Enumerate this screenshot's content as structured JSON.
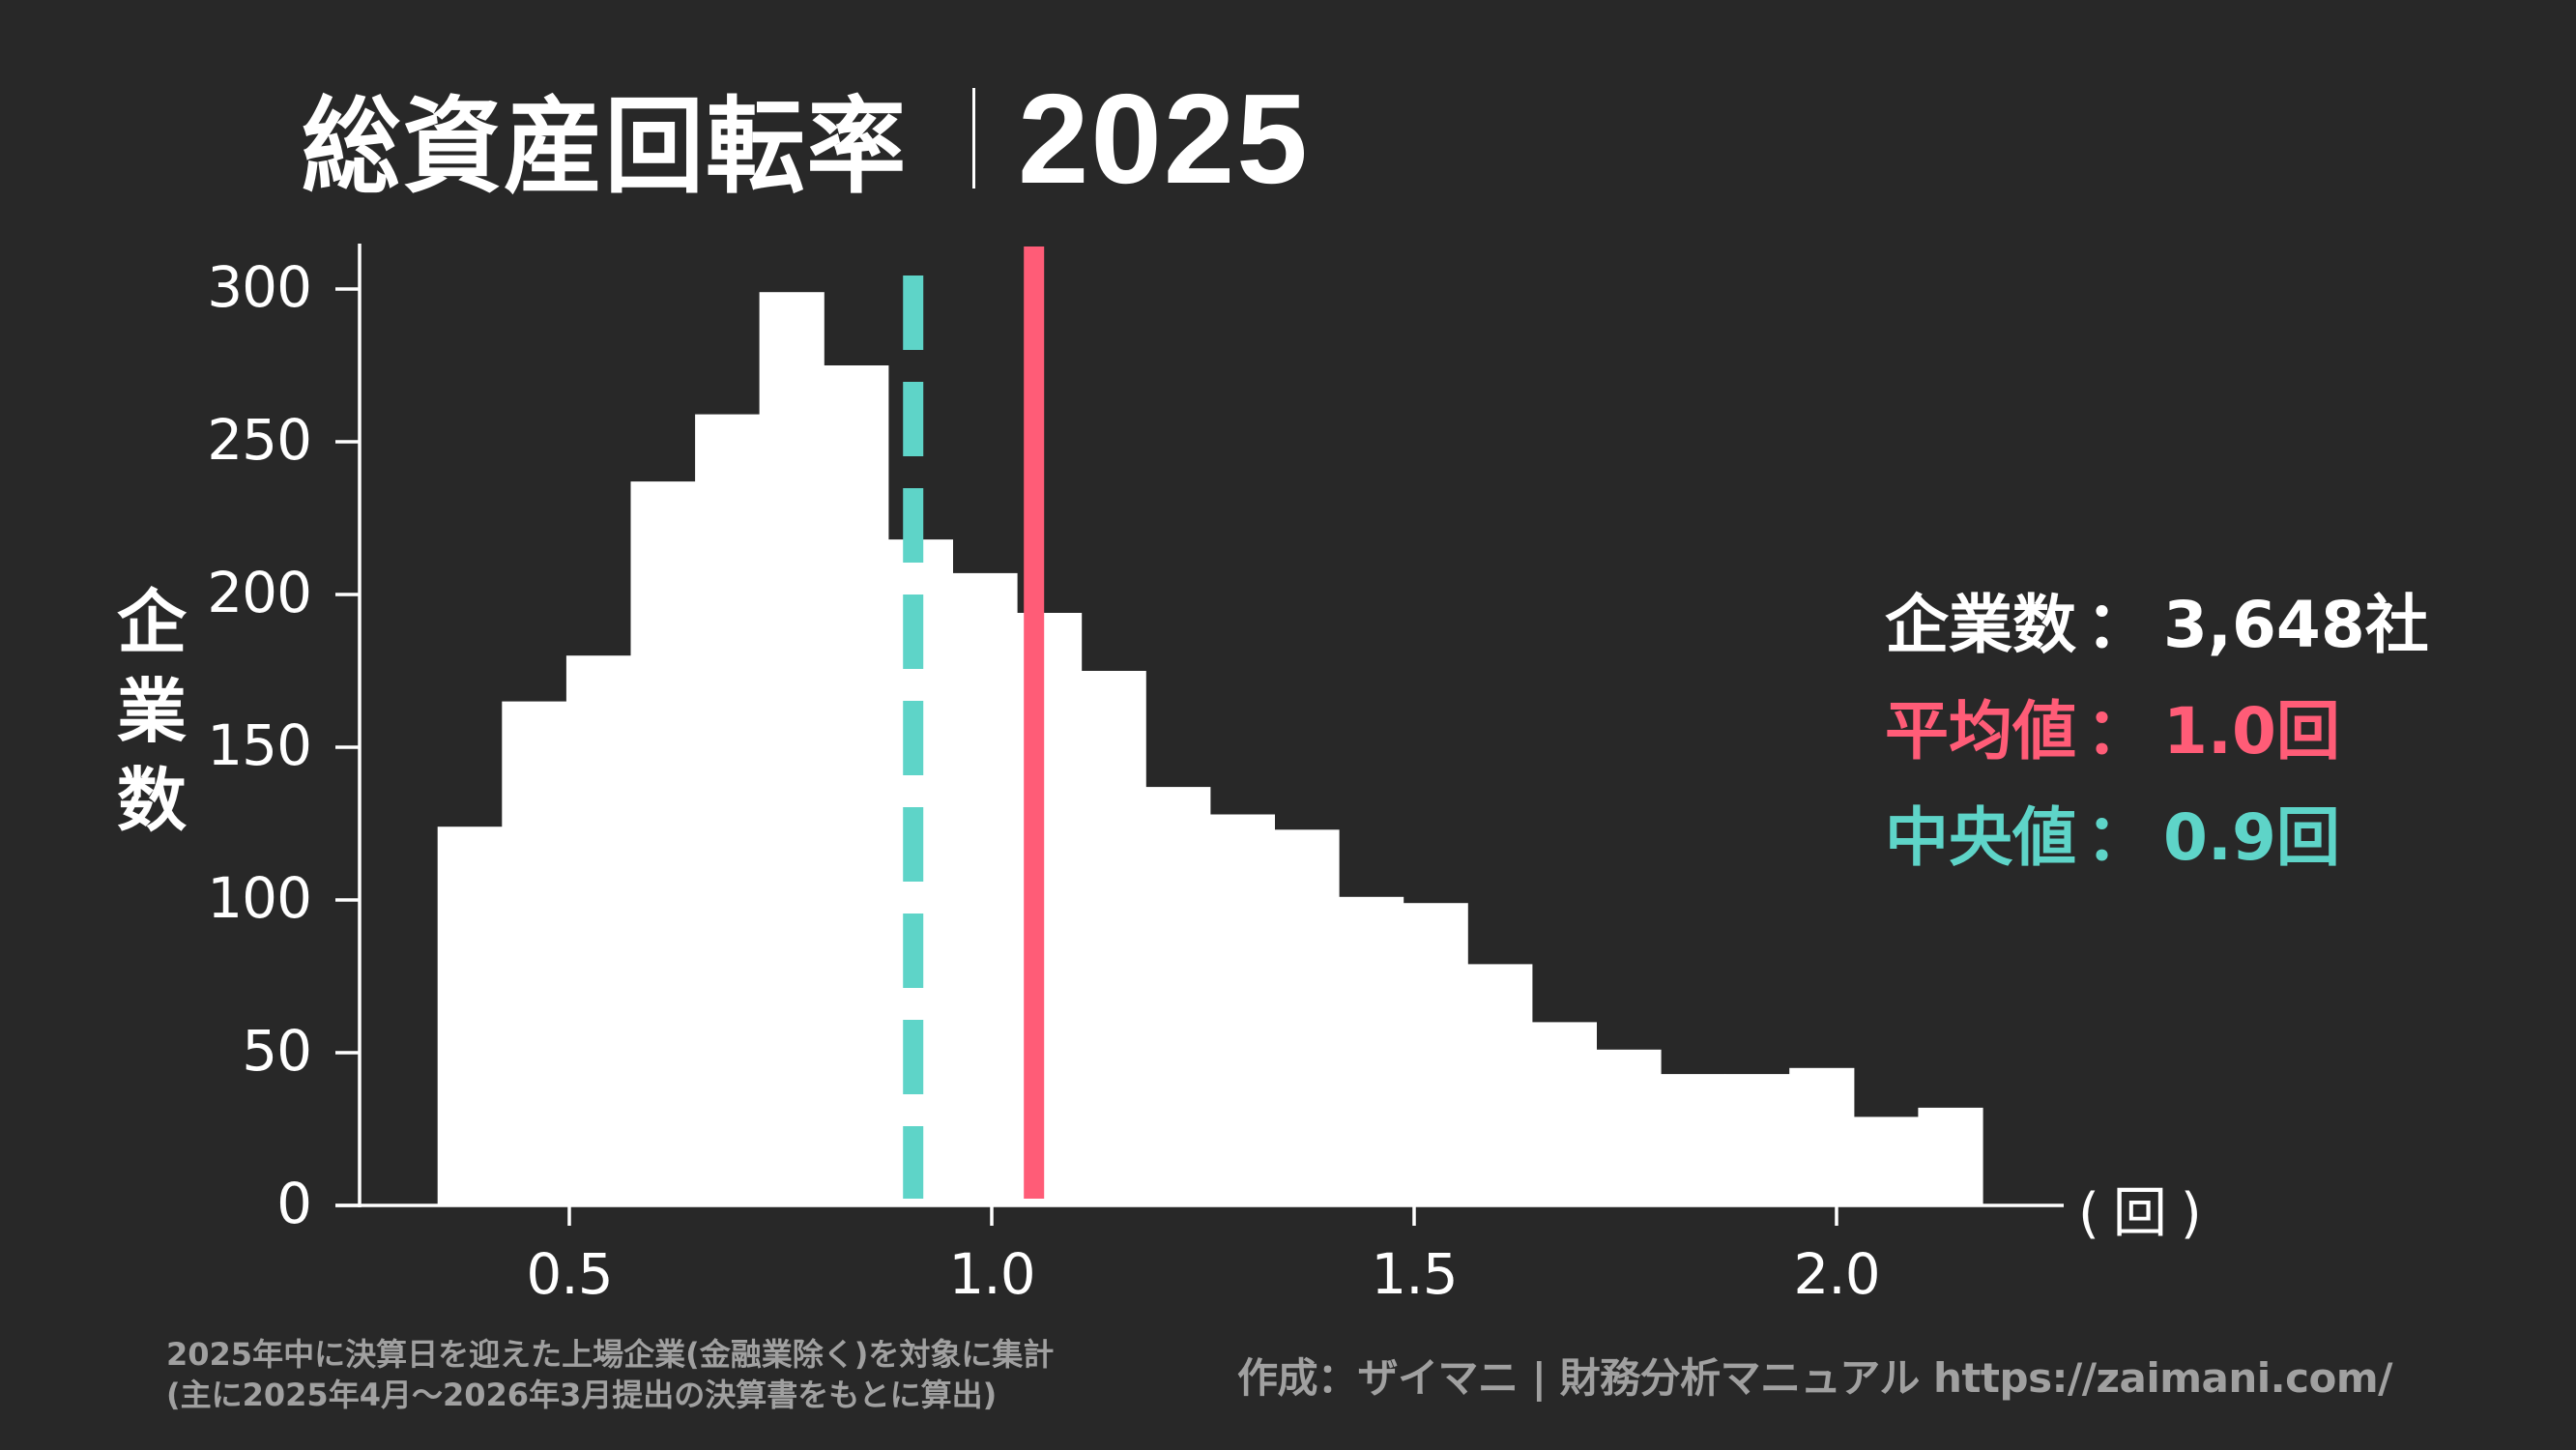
{
  "header": {
    "title": "総資産回転率",
    "separator": "|",
    "year": "2025"
  },
  "axes": {
    "ylabel_chars": [
      "企",
      "業",
      "数"
    ],
    "x_unit": "(回)"
  },
  "stats": {
    "count_label": "企業数",
    "count_value": "3,648社",
    "mean_label": "平均値",
    "mean_value": "1.0回",
    "median_label": "中央値",
    "median_value": "0.9回",
    "colon": "："
  },
  "colors": {
    "background": "#282828",
    "bars": "#ffffff",
    "axis": "#ffffff",
    "mean_line": "#FF5C77",
    "median_line": "#5ED4C8",
    "footer_text": "#a0a0a0"
  },
  "footer": {
    "note_line1": "2025年中に決算日を迎えた上場企業(金融業除く)を対象に集計",
    "note_line2": "(主に2025年4月〜2026年3月提出の決算書をもとに算出)",
    "credit": "作成：ザイマニ | 財務分析マニュアル https://zaimani.com/"
  },
  "chart_data": {
    "type": "bar",
    "subtype": "histogram",
    "title": "総資産回転率｜2025",
    "xlabel": "(回)",
    "ylabel": "企業数",
    "bin_start": 0.344,
    "bin_width": 0.0762,
    "bin_edges": [
      0.344,
      0.42,
      0.496,
      0.573,
      0.649,
      0.725,
      0.801,
      0.877,
      0.954,
      1.03,
      1.106,
      1.182,
      1.258,
      1.335,
      1.411,
      1.487,
      1.563,
      1.639,
      1.716,
      1.792,
      1.868,
      1.944,
      2.02,
      2.097,
      2.173
    ],
    "values": [
      124,
      165,
      180,
      237,
      259,
      299,
      275,
      218,
      207,
      194,
      175,
      137,
      128,
      123,
      101,
      99,
      79,
      60,
      51,
      43,
      43,
      45,
      29,
      32
    ],
    "xlim": [
      0.07,
      2.3
    ],
    "ylim": [
      0,
      315
    ],
    "xticks": [
      0.5,
      1.0,
      1.5,
      2.0
    ],
    "xtick_labels": [
      "0.5",
      "1.0",
      "1.5",
      "2.0"
    ],
    "yticks": [
      0,
      50,
      100,
      150,
      200,
      250,
      300
    ],
    "ytick_labels": [
      "0",
      "50",
      "100",
      "150",
      "200",
      "250",
      "300"
    ],
    "grid": false,
    "reference_lines": [
      {
        "name": "平均値",
        "x": 1.05,
        "label": "1.0回",
        "style": "solid",
        "color": "#FF5C77"
      },
      {
        "name": "中央値",
        "x": 0.907,
        "label": "0.9回",
        "style": "dashed",
        "color": "#5ED4C8"
      }
    ],
    "annotations": [
      "企業数：3,648社",
      "平均値：1.0回",
      "中央値：0.9回"
    ]
  }
}
